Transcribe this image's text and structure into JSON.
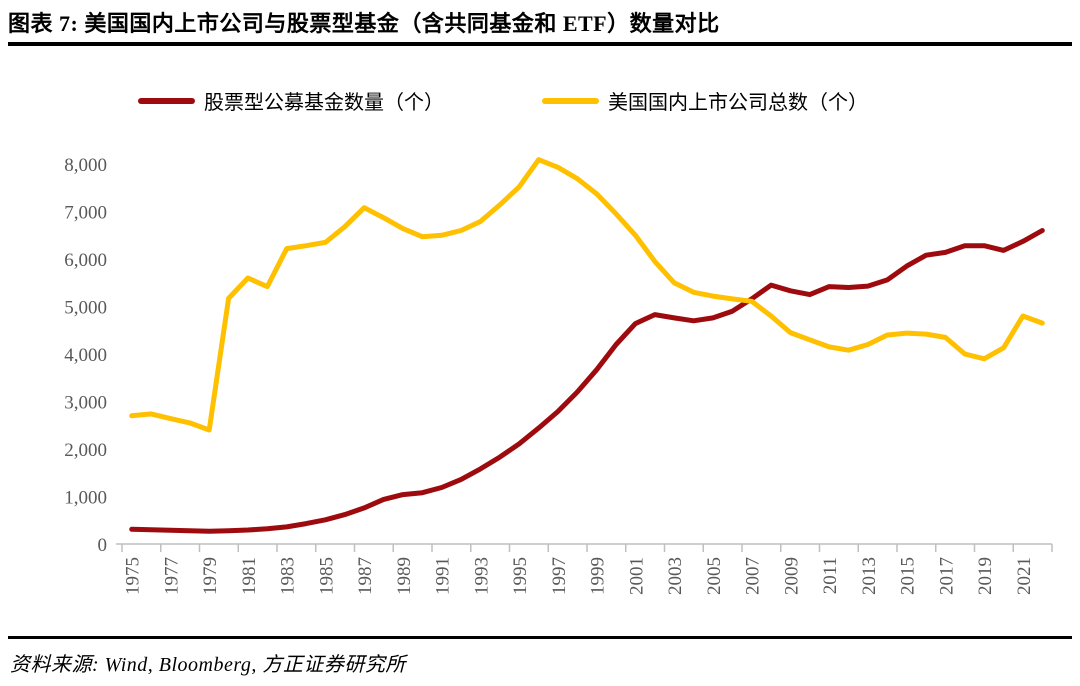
{
  "header": {
    "title": "图表 7: 美国国内上市公司与股票型基金（含共同基金和 ETF）数量对比"
  },
  "source": {
    "text": "资料来源: Wind, Bloomberg, 方正证券研究所"
  },
  "chart_data": {
    "type": "line",
    "title": "美国国内上市公司与股票型基金（含共同基金和 ETF）数量对比",
    "x": [
      1975,
      1976,
      1977,
      1978,
      1979,
      1980,
      1981,
      1982,
      1983,
      1984,
      1985,
      1986,
      1987,
      1988,
      1989,
      1990,
      1991,
      1992,
      1993,
      1994,
      1995,
      1996,
      1997,
      1998,
      1999,
      2000,
      2001,
      2002,
      2003,
      2004,
      2005,
      2006,
      2007,
      2008,
      2009,
      2010,
      2011,
      2012,
      2013,
      2014,
      2015,
      2016,
      2017,
      2018,
      2019,
      2020,
      2021,
      2022
    ],
    "x_tick_labels": [
      "1975",
      "1977",
      "1979",
      "1981",
      "1983",
      "1985",
      "1987",
      "1989",
      "1991",
      "1993",
      "1995",
      "1997",
      "1999",
      "2001",
      "2003",
      "2005",
      "2007",
      "2009",
      "2011",
      "2013",
      "2015",
      "2017",
      "2019",
      "2021"
    ],
    "x_tick_interval": 2,
    "ylim": [
      0,
      8000
    ],
    "y_ticks": [
      0,
      1000,
      2000,
      3000,
      4000,
      5000,
      6000,
      7000,
      8000
    ],
    "grid": false,
    "legend_position": "top",
    "colors": {
      "axis_text": "#595959",
      "axis_line": "#BFBFBF"
    },
    "series": [
      {
        "name": "股票型公募基金数量（个）",
        "color": "#9E0B0F",
        "values": [
          310,
          300,
          290,
          280,
          270,
          280,
          295,
          320,
          360,
          430,
          510,
          620,
          760,
          940,
          1040,
          1080,
          1190,
          1360,
          1580,
          1830,
          2110,
          2440,
          2790,
          3200,
          3670,
          4200,
          4640,
          4830,
          4760,
          4700,
          4760,
          4900,
          5160,
          5450,
          5330,
          5250,
          5420,
          5400,
          5430,
          5560,
          5850,
          6080,
          6140,
          6280,
          6280,
          6180,
          6370,
          6600
        ]
      },
      {
        "name": "美国国内上市公司总数（个）",
        "color": "#FFC000",
        "values": [
          2700,
          2740,
          2640,
          2550,
          2400,
          5170,
          5600,
          5420,
          6220,
          6280,
          6350,
          6680,
          7080,
          6870,
          6640,
          6470,
          6500,
          6600,
          6790,
          7140,
          7520,
          8090,
          7930,
          7690,
          7370,
          6950,
          6500,
          5950,
          5500,
          5300,
          5220,
          5160,
          5110,
          4800,
          4450,
          4300,
          4150,
          4080,
          4200,
          4400,
          4440,
          4420,
          4350,
          4000,
          3900,
          4130,
          4800,
          4650
        ]
      }
    ]
  }
}
